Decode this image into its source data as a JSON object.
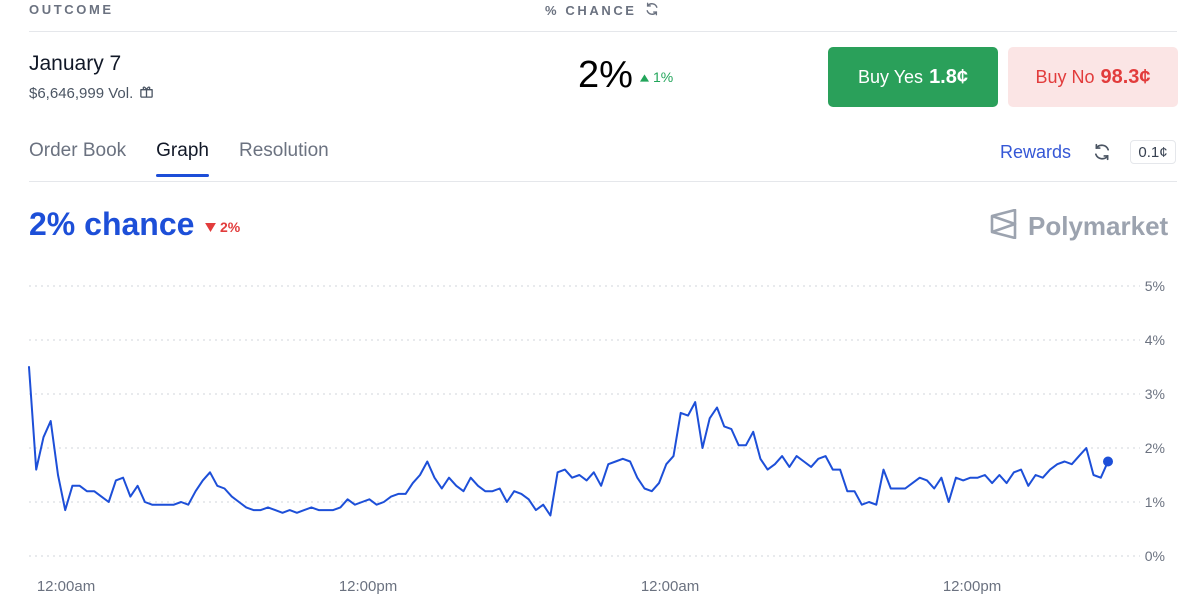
{
  "header": {
    "outcome_label": "OUTCOME",
    "chance_label": "% CHANCE"
  },
  "market": {
    "outcome_name": "January 7",
    "volume": "$6,646,999 Vol.",
    "chance": "2%",
    "change": "1%",
    "change_direction": "up"
  },
  "buttons": {
    "yes_label": "Buy Yes",
    "yes_price": "1.8¢",
    "no_label": "Buy No",
    "no_price": "98.3¢"
  },
  "tabs": [
    "Order Book",
    "Graph",
    "Resolution"
  ],
  "active_tab": "Graph",
  "rewards": {
    "label": "Rewards",
    "tick_size": "0.1¢"
  },
  "graph_header": {
    "chance_text": "2% chance",
    "change": "2%",
    "change_direction": "down",
    "brand": "Polymarket"
  },
  "colors": {
    "accent_blue": "#1d4fd8",
    "yes_green": "#2aa05a",
    "no_red": "#e23c3c",
    "no_bg": "#fbe5e5"
  },
  "chart_data": {
    "type": "line",
    "x_ticks": [
      "12:00am",
      "12:00pm",
      "12:00am",
      "12:00pm"
    ],
    "y_ticks": [
      "0%",
      "1%",
      "2%",
      "3%",
      "4%",
      "5%"
    ],
    "ylim": [
      0,
      5
    ],
    "grid": true,
    "series": [
      {
        "values": [
          3.5,
          1.6,
          2.2,
          2.5,
          1.5,
          0.85,
          1.3,
          1.3,
          1.2,
          1.2,
          1.1,
          1.0,
          1.4,
          1.45,
          1.1,
          1.3,
          1.0,
          0.95,
          0.95,
          0.95,
          0.95,
          1.0,
          0.95,
          1.2,
          1.4,
          1.55,
          1.3,
          1.25,
          1.1,
          1.0,
          0.9,
          0.85,
          0.85,
          0.9,
          0.85,
          0.8,
          0.85,
          0.8,
          0.85,
          0.9,
          0.85,
          0.85,
          0.85,
          0.9,
          1.05,
          0.95,
          1.0,
          1.05,
          0.95,
          1.0,
          1.1,
          1.15,
          1.15,
          1.35,
          1.5,
          1.75,
          1.45,
          1.25,
          1.45,
          1.3,
          1.2,
          1.45,
          1.3,
          1.2,
          1.2,
          1.25,
          1.0,
          1.2,
          1.15,
          1.05,
          0.85,
          0.95,
          0.75,
          1.55,
          1.6,
          1.45,
          1.5,
          1.4,
          1.55,
          1.3,
          1.7,
          1.75,
          1.8,
          1.75,
          1.45,
          1.25,
          1.2,
          1.35,
          1.7,
          1.85,
          2.65,
          2.6,
          2.85,
          2.0,
          2.55,
          2.75,
          2.4,
          2.35,
          2.05,
          2.05,
          2.3,
          1.8,
          1.6,
          1.7,
          1.85,
          1.65,
          1.85,
          1.75,
          1.65,
          1.8,
          1.85,
          1.6,
          1.6,
          1.2,
          1.2,
          0.95,
          1.0,
          0.95,
          1.6,
          1.25,
          1.25,
          1.25,
          1.35,
          1.45,
          1.4,
          1.25,
          1.45,
          1.0,
          1.45,
          1.4,
          1.45,
          1.45,
          1.5,
          1.35,
          1.5,
          1.35,
          1.55,
          1.6,
          1.3,
          1.5,
          1.45,
          1.6,
          1.7,
          1.75,
          1.7,
          1.85,
          2.0,
          1.5,
          1.45,
          1.75
        ]
      }
    ]
  }
}
